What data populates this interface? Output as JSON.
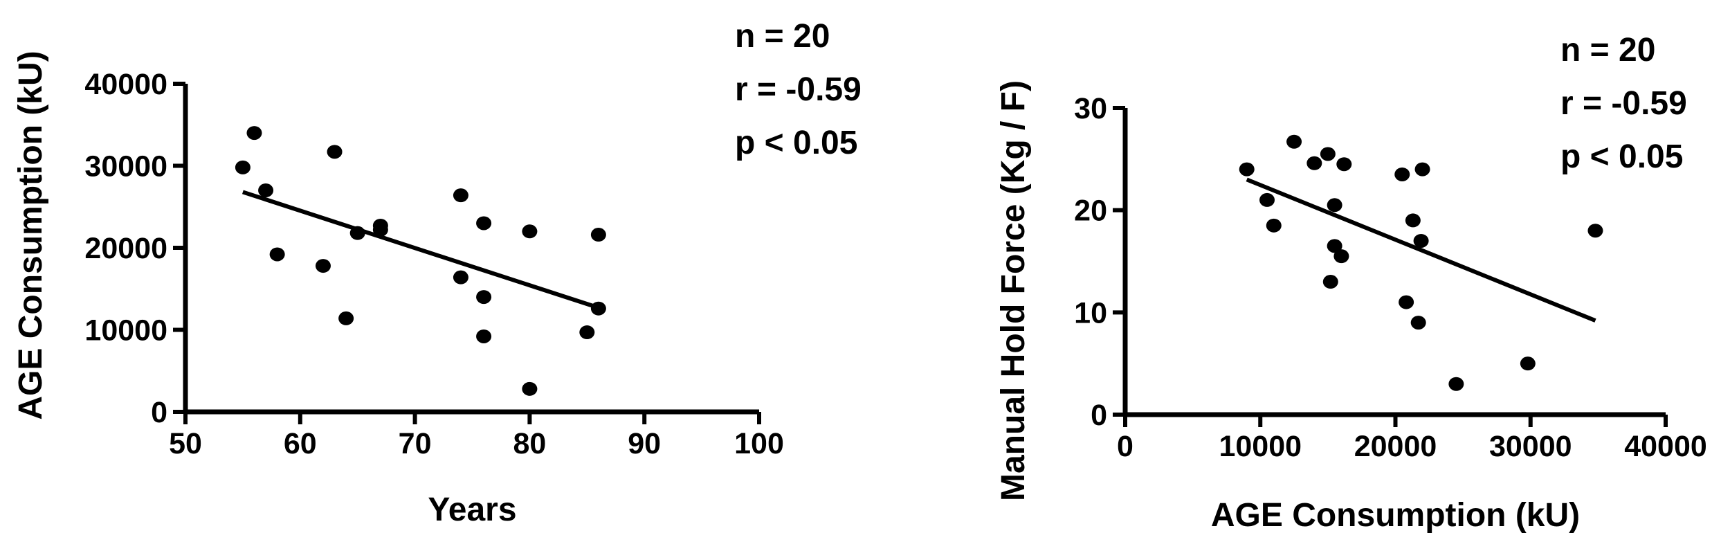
{
  "chart_data": [
    {
      "type": "scatter",
      "xlabel": "Years",
      "ylabel": "AGE Consumption (kU)",
      "xlim": [
        50,
        100
      ],
      "ylim": [
        0,
        40000
      ],
      "xticks": [
        "50",
        "60",
        "70",
        "80",
        "90",
        "100"
      ],
      "yticks": [
        "0",
        "10000",
        "20000",
        "30000",
        "40000"
      ],
      "annotations": [
        "n = 20",
        "r = -0.59",
        "p < 0.05"
      ],
      "points": [
        [
          55,
          29800
        ],
        [
          56,
          34000
        ],
        [
          57,
          27000
        ],
        [
          58,
          19200
        ],
        [
          62,
          17800
        ],
        [
          63,
          31700
        ],
        [
          64,
          11400
        ],
        [
          65,
          21800
        ],
        [
          67,
          22700
        ],
        [
          67,
          22200
        ],
        [
          74,
          26400
        ],
        [
          74,
          16400
        ],
        [
          76,
          23000
        ],
        [
          76,
          14000
        ],
        [
          76,
          9200
        ],
        [
          80,
          22000
        ],
        [
          80,
          2800
        ],
        [
          85,
          9700
        ],
        [
          86,
          21600
        ],
        [
          86,
          12600
        ]
      ],
      "fit_line": [
        [
          55,
          26800
        ],
        [
          86,
          12700
        ]
      ],
      "grid": false
    },
    {
      "type": "scatter",
      "xlabel": "AGE Consumption (kU)",
      "ylabel": "Manual Hold Force (Kg / F)",
      "xlim": [
        0,
        40000
      ],
      "ylim": [
        0,
        30
      ],
      "xticks": [
        "0",
        "10000",
        "20000",
        "30000",
        "40000"
      ],
      "yticks": [
        "0",
        "10",
        "20",
        "30"
      ],
      "annotations": [
        "n = 20",
        "r = -0.59",
        "p < 0.05"
      ],
      "points": [
        [
          9000,
          24
        ],
        [
          10500,
          21
        ],
        [
          11000,
          18.5
        ],
        [
          12500,
          26.7
        ],
        [
          14000,
          24.6
        ],
        [
          15000,
          25.5
        ],
        [
          15200,
          13
        ],
        [
          15500,
          20.5
        ],
        [
          15500,
          16.5
        ],
        [
          16000,
          15.5
        ],
        [
          16200,
          24.5
        ],
        [
          20500,
          23.5
        ],
        [
          20800,
          11
        ],
        [
          21300,
          19
        ],
        [
          21700,
          9
        ],
        [
          21900,
          17
        ],
        [
          22000,
          24
        ],
        [
          24500,
          3
        ],
        [
          29800,
          5
        ],
        [
          34800,
          18
        ]
      ],
      "fit_line": [
        [
          9000,
          23
        ],
        [
          34800,
          9.2
        ]
      ],
      "grid": false
    }
  ]
}
